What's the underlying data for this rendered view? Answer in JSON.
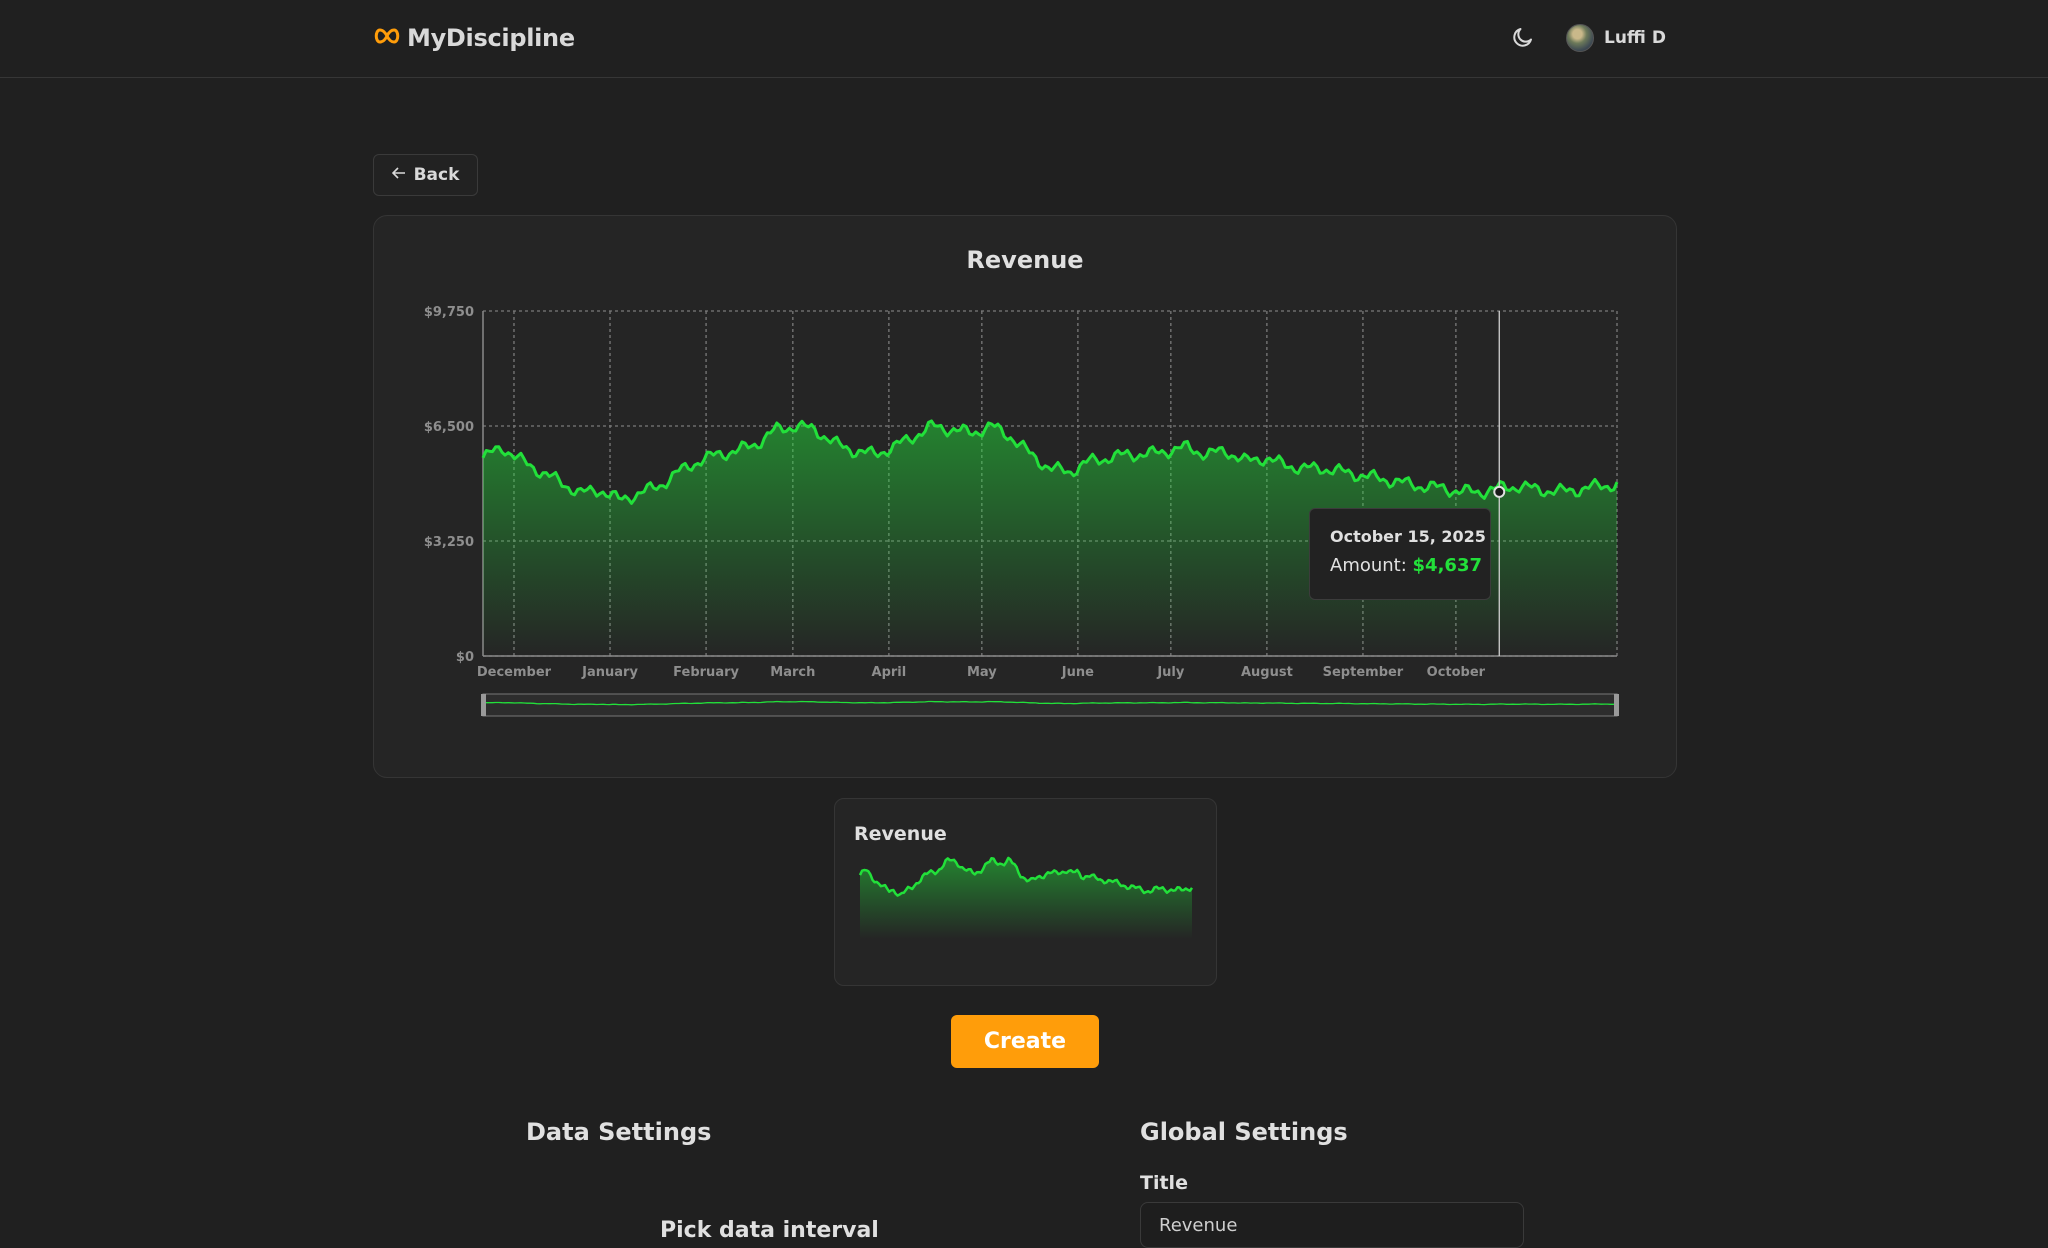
{
  "header": {
    "brand_name": "MyDiscipline",
    "theme_icon": "moon-icon",
    "user_name": "Luffi D"
  },
  "back_button": {
    "label": "Back",
    "icon": "arrow-left-icon"
  },
  "chart_data": {
    "type": "area",
    "title": "Revenue",
    "xlabel": "",
    "ylabel": "",
    "y_ticks": [
      "$0",
      "$3,250",
      "$6,500",
      "$9,750"
    ],
    "ylim": [
      0,
      9750
    ],
    "x_ticks": [
      "December",
      "January",
      "February",
      "March",
      "April",
      "May",
      "June",
      "July",
      "August",
      "September",
      "October"
    ],
    "grid": true,
    "series": [
      {
        "color": "#22e03a",
        "x_start": "2024-11-21",
        "x_end": "2025-11-22",
        "x_step_days": 7,
        "values": [
          5600,
          5900,
          5500,
          5200,
          4900,
          4600,
          4700,
          4400,
          4600,
          4800,
          5200,
          5500,
          5700,
          5800,
          6000,
          6400,
          6500,
          6400,
          6000,
          5800,
          5700,
          5900,
          6200,
          6500,
          6400,
          6300,
          6500,
          6200,
          5700,
          5300,
          5200,
          5500,
          5600,
          5700,
          5700,
          5800,
          5900,
          5700,
          5800,
          5500,
          5600,
          5400,
          5300,
          5300,
          5200,
          5100,
          5000,
          4900,
          4800,
          4750,
          4650,
          4637,
          4750,
          4800,
          4700,
          4650,
          4700,
          4800,
          4850
        ]
      }
    ],
    "tooltip": {
      "date": "October 15, 2025",
      "label": "Amount: ",
      "value": "$4,637"
    },
    "navigator": true
  },
  "preview_card": {
    "title": "Revenue"
  },
  "create_button": {
    "label": "Create"
  },
  "data_settings": {
    "title": "Data Settings",
    "interval_label": "Pick data interval"
  },
  "global_settings": {
    "title": "Global Settings",
    "title_field_label": "Title",
    "title_field_value": "Revenue"
  }
}
